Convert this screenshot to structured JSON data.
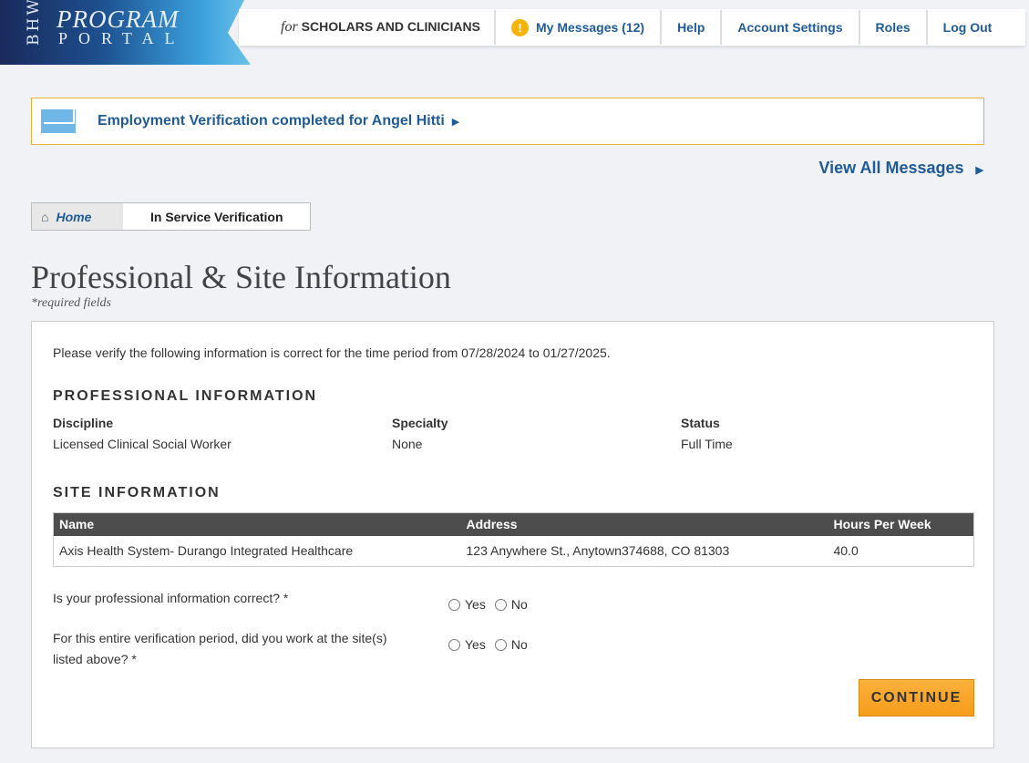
{
  "logo": {
    "bhw": "BHW",
    "line1": "PROGRAM",
    "line2": "PORTAL"
  },
  "header": {
    "tag_for": "for",
    "tag": "SCHOLARS AND CLINICIANS",
    "nav": [
      "My Messages (12)",
      "Help",
      "Account Settings",
      "Roles",
      "Log Out"
    ]
  },
  "message": {
    "text": "Employment Verification completed for Angel Hitti",
    "view_all": "View All Messages"
  },
  "breadcrumb": {
    "home": "Home",
    "current": "In Service Verification"
  },
  "page": {
    "title": "Professional & Site Information",
    "required": "*required fields"
  },
  "form": {
    "intro": "Please verify the following information is correct for the time period from 07/28/2024 to 01/27/2025.",
    "professional": {
      "heading": "PROFESSIONAL INFORMATION",
      "labels": [
        "Discipline",
        "Specialty",
        "Status"
      ],
      "values": [
        "Licensed Clinical Social Worker",
        "None",
        "Full Time"
      ]
    },
    "site": {
      "heading": "SITE INFORMATION",
      "columns": [
        "Name",
        "Address",
        "Hours Per Week"
      ],
      "rows": [
        [
          "Axis Health System- Durango Integrated Healthcare",
          "123 Anywhere St., Anytown374688, CO 81303",
          "40.0"
        ]
      ]
    },
    "questions": [
      {
        "text": "Is your professional information correct? *",
        "yes": "Yes",
        "no": "No"
      },
      {
        "text": "For this entire verification period, did you work at the site(s) listed above? *",
        "yes": "Yes",
        "no": "No"
      }
    ],
    "continue": "CONTINUE"
  }
}
